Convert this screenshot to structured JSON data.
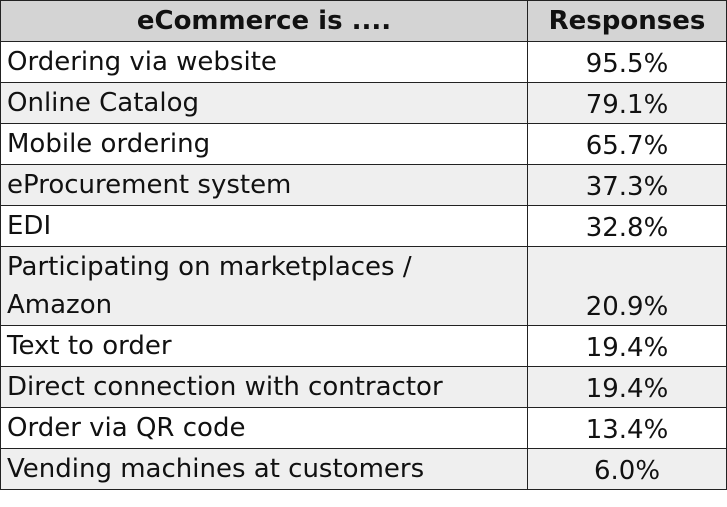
{
  "table": {
    "header": [
      "eCommerce is ....",
      "Responses"
    ],
    "rows": [
      [
        "Ordering via website",
        "95.5%"
      ],
      [
        "Online Catalog",
        "79.1%"
      ],
      [
        "Mobile ordering",
        "65.7%"
      ],
      [
        "eProcurement system",
        "37.3%"
      ],
      [
        "EDI",
        "32.8%"
      ],
      [
        "Participating on marketplaces / Amazon",
        "20.9%"
      ],
      [
        "Text to order",
        "19.4%"
      ],
      [
        "Direct connection with contractor",
        "19.4%"
      ],
      [
        "Order via QR code",
        "13.4%"
      ],
      [
        "Vending machines at customers",
        "6.0%"
      ]
    ]
  }
}
